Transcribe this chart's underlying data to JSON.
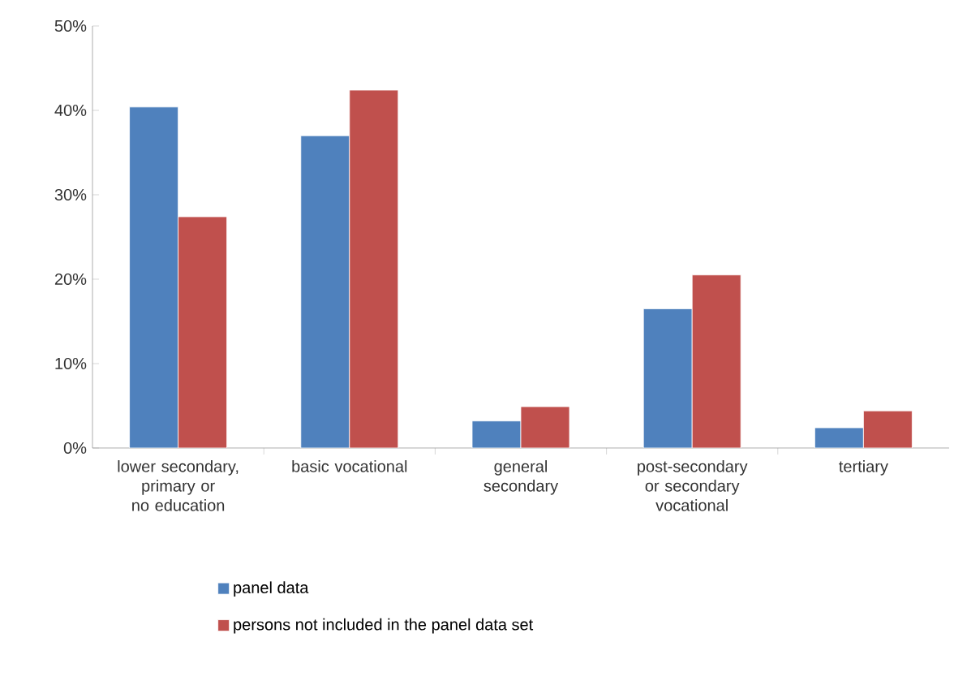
{
  "chart_data": {
    "type": "bar",
    "categories": [
      "lower secondary, primary or no education",
      "basic vocational",
      "general secondary",
      "post-secondary or secondary vocational",
      "tertiary"
    ],
    "series": [
      {
        "name": "panel data",
        "color": "#4f81bd",
        "values": [
          40.4,
          37.0,
          3.2,
          16.5,
          2.4
        ]
      },
      {
        "name": "persons not included in the panel data set",
        "color": "#c0504d",
        "values": [
          27.4,
          42.4,
          4.9,
          20.5,
          4.4
        ]
      }
    ],
    "ylim": [
      0,
      50
    ],
    "yticks": [
      {
        "value": 0,
        "label": "0%"
      },
      {
        "value": 10,
        "label": "10%"
      },
      {
        "value": 20,
        "label": "20%"
      },
      {
        "value": 30,
        "label": "30%"
      },
      {
        "value": 40,
        "label": "40%"
      },
      {
        "value": 50,
        "label": "50%"
      }
    ],
    "grid": false,
    "legend": "bottom"
  }
}
